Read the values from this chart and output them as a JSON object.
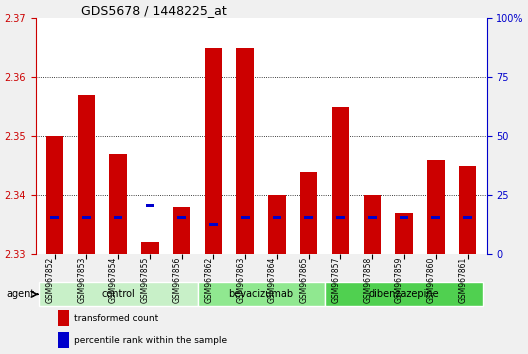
{
  "title": "GDS5678 / 1448225_at",
  "samples": [
    "GSM967852",
    "GSM967853",
    "GSM967854",
    "GSM967855",
    "GSM967856",
    "GSM967862",
    "GSM967863",
    "GSM967864",
    "GSM967865",
    "GSM967857",
    "GSM967858",
    "GSM967859",
    "GSM967860",
    "GSM967861"
  ],
  "groups": [
    {
      "name": "control",
      "color": "#c8f0c8",
      "count": 5
    },
    {
      "name": "bevacizumab",
      "color": "#90e890",
      "count": 4
    },
    {
      "name": "dibenzazepine",
      "color": "#50d050",
      "count": 5
    }
  ],
  "transformed_counts": [
    2.35,
    2.357,
    2.347,
    2.332,
    2.338,
    2.365,
    2.365,
    2.34,
    2.344,
    2.355,
    2.34,
    2.337,
    2.346,
    2.345
  ],
  "percentile_ranks": [
    15,
    15,
    15,
    20,
    15,
    12,
    15,
    15,
    15,
    15,
    15,
    15,
    15,
    15
  ],
  "ylim_left": [
    2.33,
    2.37
  ],
  "ylim_right": [
    0,
    100
  ],
  "yticks_left": [
    2.33,
    2.34,
    2.35,
    2.36,
    2.37
  ],
  "yticks_right": [
    0,
    25,
    50,
    75,
    100
  ],
  "bar_color": "#cc0000",
  "percentile_color": "#0000cc",
  "bg_color": "#f0f0f0",
  "plot_bg": "#ffffff",
  "grid_color": "#000000",
  "agent_label": "agent",
  "legend_items": [
    {
      "color": "#cc0000",
      "label": "transformed count"
    },
    {
      "color": "#0000cc",
      "label": "percentile rank within the sample"
    }
  ]
}
